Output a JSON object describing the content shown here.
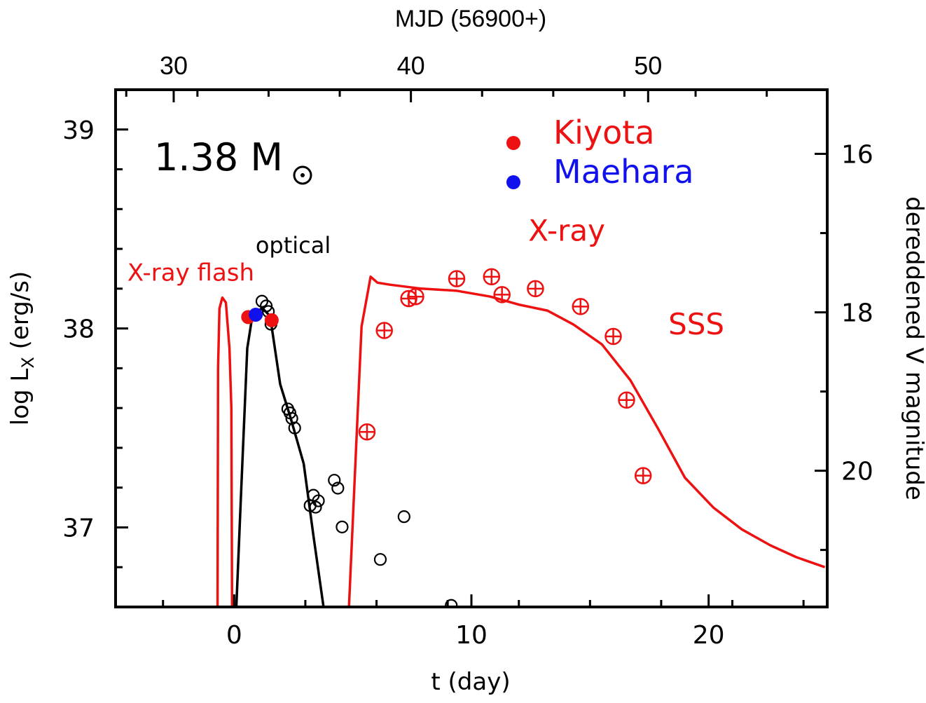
{
  "chart_data": {
    "type": "line",
    "title": "",
    "mass_label": "1.38 M",
    "mass_symbol": "⊙",
    "xlabel": "t (day)",
    "ylabel_left": "log L",
    "ylabel_left_sub": "X",
    "ylabel_left_suffix": " (erg/s)",
    "ylabel_right": "dereddened V magnitude",
    "xlabel_top": "MJD (56900+)",
    "xlim": [
      -5,
      25
    ],
    "ylim_left": [
      36.6,
      39.2
    ],
    "ylim_right": [
      21.72,
      15.19
    ],
    "mjd_offset_t0": 32.55,
    "x_ticks": [
      0,
      10,
      20
    ],
    "x_tick_labels": [
      "0",
      "10",
      "20"
    ],
    "x_minor_step": 3,
    "y_left_ticks": [
      37,
      38,
      39
    ],
    "y_left_tick_labels": [
      "37",
      "38",
      "39"
    ],
    "y_left_minor_step": 0.2,
    "y_right_ticks": [
      16,
      18,
      20
    ],
    "y_right_tick_labels": [
      "16",
      "18",
      "20"
    ],
    "y_right_minor_step": 1,
    "top_ticks": [
      30,
      40,
      50
    ],
    "top_tick_labels": [
      "30",
      "40",
      "50"
    ],
    "top_minor_step": 3,
    "grid": false,
    "colors": {
      "xray": "#ee1111",
      "optical": "#000000",
      "kiyota": "#ee1111",
      "maehara": "#1111ee"
    },
    "annotations": [
      {
        "text": "X-ray flash",
        "color": "#ee1111",
        "t": -4.5,
        "logL": 38.24
      },
      {
        "text": "optical",
        "color": "#000000",
        "t": 0.9,
        "logL": 38.38
      },
      {
        "text": "X-ray",
        "color": "#ee1111",
        "t": 12.4,
        "logL": 38.44
      },
      {
        "text": "SSS",
        "color": "#ee1111",
        "t": 18.3,
        "logL": 37.97
      }
    ],
    "legend": {
      "placement": "top-right",
      "entries": [
        {
          "label": "Kiyota",
          "color": "#ee1111"
        },
        {
          "label": "Maehara",
          "color": "#1111ee"
        }
      ]
    },
    "series": [
      {
        "name": "X-ray flash model",
        "axis": "left",
        "kind": "line",
        "color": "#ee1111",
        "points": [
          [
            -0.7,
            36.6
          ],
          [
            -0.68,
            37.8
          ],
          [
            -0.62,
            38.1
          ],
          [
            -0.5,
            38.155
          ],
          [
            -0.35,
            38.13
          ],
          [
            -0.2,
            37.9
          ],
          [
            -0.12,
            37.6
          ],
          [
            -0.09,
            36.6
          ]
        ]
      },
      {
        "name": "Optical model",
        "axis": "left",
        "kind": "line",
        "color": "#000000",
        "points": [
          [
            0.09,
            36.6
          ],
          [
            0.3,
            37.2
          ],
          [
            0.55,
            37.9
          ],
          [
            0.75,
            38.05
          ],
          [
            1.0,
            38.09
          ],
          [
            1.2,
            38.1
          ],
          [
            1.45,
            38.07
          ],
          [
            1.58,
            38.01
          ],
          [
            1.94,
            37.72
          ],
          [
            2.38,
            37.55
          ],
          [
            2.93,
            37.32
          ],
          [
            3.34,
            36.96
          ],
          [
            3.78,
            36.59
          ]
        ]
      },
      {
        "name": "SSS model",
        "axis": "left",
        "kind": "line",
        "color": "#ee1111",
        "points": [
          [
            4.84,
            36.6
          ],
          [
            5.1,
            37.3
          ],
          [
            5.37,
            38.01
          ],
          [
            5.75,
            38.26
          ],
          [
            6.04,
            38.23
          ],
          [
            6.57,
            38.22
          ],
          [
            7.89,
            38.2
          ],
          [
            9.35,
            38.19
          ],
          [
            10.8,
            38.16
          ],
          [
            12.0,
            38.12
          ],
          [
            13.2,
            38.09
          ],
          [
            14.3,
            38.02
          ],
          [
            15.5,
            37.92
          ],
          [
            16.7,
            37.74
          ],
          [
            17.9,
            37.49
          ],
          [
            19.0,
            37.25
          ],
          [
            20.2,
            37.1
          ],
          [
            21.4,
            36.99
          ],
          [
            22.6,
            36.91
          ],
          [
            23.7,
            36.85
          ],
          [
            24.9,
            36.8
          ]
        ]
      },
      {
        "name": "X-ray observations",
        "axis": "left",
        "kind": "scatter",
        "marker": "circle-plus",
        "color": "#ee1111",
        "points": [
          [
            5.6,
            37.48
          ],
          [
            6.33,
            37.99
          ],
          [
            7.36,
            38.15
          ],
          [
            7.65,
            38.16
          ],
          [
            9.38,
            38.25
          ],
          [
            10.85,
            38.26
          ],
          [
            11.29,
            38.17
          ],
          [
            12.7,
            38.2
          ],
          [
            14.6,
            38.11
          ],
          [
            15.98,
            37.96
          ],
          [
            16.54,
            37.64
          ],
          [
            17.24,
            37.26
          ]
        ]
      },
      {
        "name": "Optical observations",
        "axis": "right",
        "kind": "scatter",
        "marker": "open-circle",
        "color": "#000000",
        "points": [
          [
            1.17,
            17.86
          ],
          [
            1.35,
            17.92
          ],
          [
            1.44,
            17.99
          ],
          [
            1.55,
            18.15
          ],
          [
            2.26,
            19.22
          ],
          [
            2.35,
            19.27
          ],
          [
            2.43,
            19.34
          ],
          [
            2.55,
            19.46
          ],
          [
            3.2,
            20.44
          ],
          [
            3.34,
            20.31
          ],
          [
            3.43,
            20.46
          ],
          [
            3.55,
            20.38
          ],
          [
            4.22,
            20.12
          ],
          [
            4.37,
            20.22
          ],
          [
            4.55,
            20.71
          ],
          [
            6.16,
            21.12
          ],
          [
            7.16,
            20.58
          ],
          [
            9.15,
            21.7
          ]
        ]
      },
      {
        "name": "Kiyota",
        "axis": "right",
        "kind": "scatter",
        "marker": "filled-circle",
        "color": "#ee1111",
        "points": [
          [
            0.59,
            18.06
          ],
          [
            1.58,
            18.1
          ]
        ]
      },
      {
        "name": "Maehara",
        "axis": "right",
        "kind": "scatter",
        "marker": "filled-circle",
        "color": "#1111ee",
        "points": [
          [
            0.91,
            18.03
          ]
        ]
      }
    ]
  }
}
